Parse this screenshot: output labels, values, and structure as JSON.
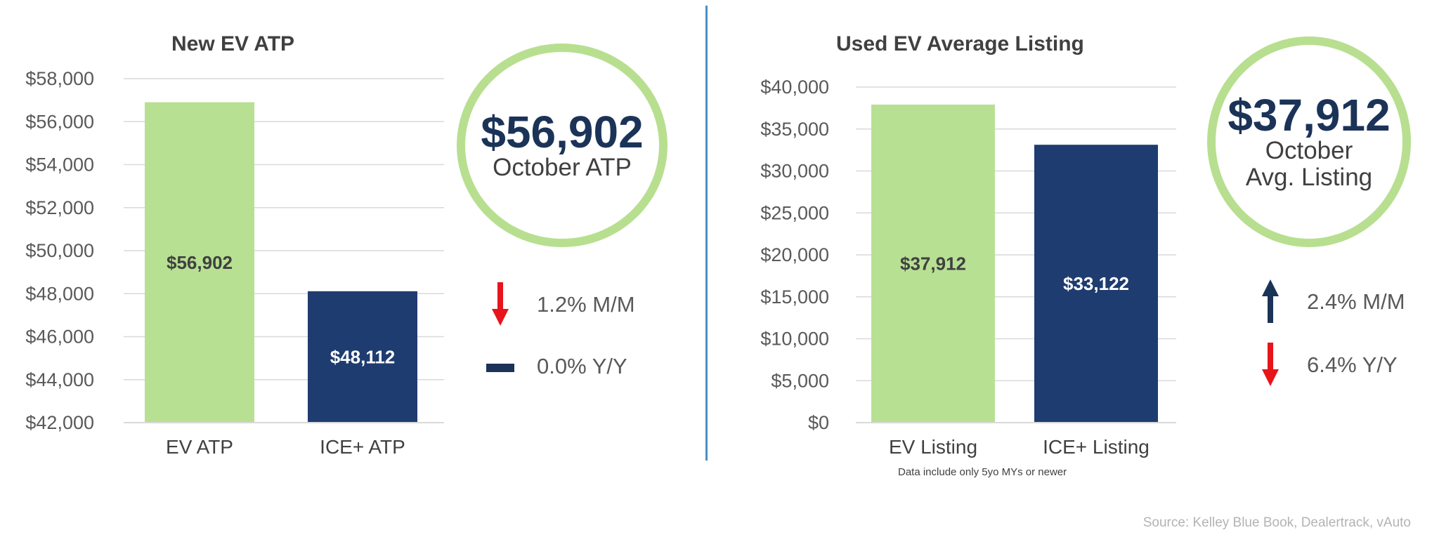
{
  "chart_data": [
    {
      "type": "bar",
      "title": "New EV ATP",
      "categories": [
        "EV ATP",
        "ICE+ ATP"
      ],
      "values": [
        56902,
        48112
      ],
      "data_labels": [
        "$56,902",
        "$48,112"
      ],
      "ylim": [
        42000,
        58000
      ],
      "yticks": [
        42000,
        44000,
        46000,
        48000,
        50000,
        52000,
        54000,
        56000,
        58000
      ],
      "ytick_labels": [
        "$42,000",
        "$44,000",
        "$46,000",
        "$48,000",
        "$50,000",
        "$52,000",
        "$54,000",
        "$56,000",
        "$58,000"
      ],
      "bar_colors": [
        "#b7e093",
        "#1f3c70"
      ],
      "label_colors": [
        "#404040",
        "#ffffff"
      ],
      "grid": true,
      "xlabel": "",
      "ylabel": ""
    },
    {
      "type": "bar",
      "title": "Used EV Average Listing",
      "categories": [
        "EV Listing",
        "ICE+ Listing"
      ],
      "values": [
        37912,
        33122
      ],
      "data_labels": [
        "$37,912",
        "$33,122"
      ],
      "ylim": [
        0,
        40000
      ],
      "yticks": [
        0,
        5000,
        10000,
        15000,
        20000,
        25000,
        30000,
        35000,
        40000
      ],
      "ytick_labels": [
        "$0",
        "$5,000",
        "$10,000",
        "$15,000",
        "$20,000",
        "$25,000",
        "$30,000",
        "$35,000",
        "$40,000"
      ],
      "bar_colors": [
        "#b7e093",
        "#1f3c70"
      ],
      "label_colors": [
        "#404040",
        "#ffffff"
      ],
      "grid": true,
      "xlabel": "",
      "ylabel": ""
    }
  ],
  "new_ev": {
    "title": "New EV ATP",
    "circle_value": "$56,902",
    "circle_label": "October ATP",
    "changes": [
      {
        "icon": "down-arrow-icon",
        "text": "1.2% M/M"
      },
      {
        "icon": "dash-icon",
        "text": "0.0% Y/Y"
      }
    ]
  },
  "used_ev": {
    "title": "Used EV Average Listing",
    "circle_value": "$37,912",
    "circle_label_1": "October",
    "circle_label_2": "Avg. Listing",
    "changes": [
      {
        "icon": "up-arrow-icon",
        "text": "2.4% M/M"
      },
      {
        "icon": "down-arrow-icon",
        "text": "6.4% Y/Y"
      }
    ],
    "footnote": "Data include only 5yo MYs or newer"
  },
  "source": "Source: Kelley Blue Book, Dealertrack, vAuto",
  "colors": {
    "accent_green": "#b7df8f",
    "navy": "#1c3358",
    "down_red": "#e8141b",
    "divider_blue": "#4a8fc4"
  }
}
